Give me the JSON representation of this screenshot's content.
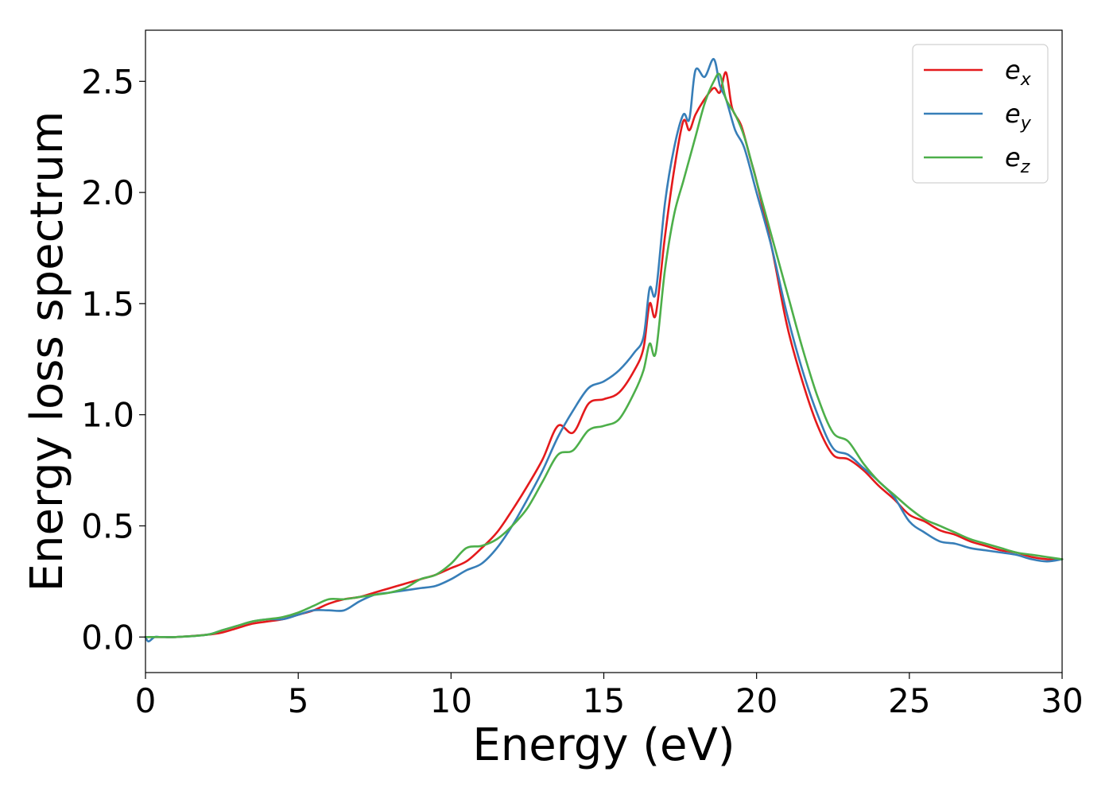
{
  "chart_data": {
    "type": "line",
    "title": "",
    "xlabel": "Energy (eV)",
    "ylabel": "Energy loss spectrum",
    "xlim": [
      0,
      30
    ],
    "ylim": [
      -0.16,
      2.73
    ],
    "xticks": [
      0,
      5,
      10,
      15,
      20,
      25,
      30
    ],
    "yticks": [
      0.0,
      0.5,
      1.0,
      1.5,
      2.0,
      2.5
    ],
    "xtick_labels": [
      "0",
      "5",
      "10",
      "15",
      "20",
      "25",
      "30"
    ],
    "ytick_labels": [
      "0.0",
      "0.5",
      "1.0",
      "1.5",
      "2.0",
      "2.5"
    ],
    "grid": false,
    "legend_position": "top-right",
    "series": [
      {
        "name": "e_x",
        "label_main": "e",
        "label_sub": "x",
        "color": "#e41a1c",
        "x": [
          0,
          0.5,
          1,
          2,
          2.5,
          3,
          3.5,
          4,
          4.5,
          5,
          5.5,
          6,
          6.5,
          7,
          7.5,
          8,
          8.5,
          9,
          9.5,
          10,
          10.5,
          11,
          11.5,
          12,
          12.5,
          13,
          13.5,
          14,
          14.5,
          15,
          15.5,
          16,
          16.3,
          16.5,
          16.7,
          17,
          17.3,
          17.6,
          17.8,
          18,
          18.3,
          18.6,
          18.8,
          19,
          19.2,
          19.5,
          19.8,
          20,
          20.5,
          21,
          21.5,
          22,
          22.5,
          23,
          23.5,
          24,
          24.5,
          25,
          25.5,
          26,
          26.5,
          27,
          27.5,
          28,
          28.5,
          29,
          29.5,
          30
        ],
        "values": [
          0.0,
          0.0,
          0.0,
          0.01,
          0.02,
          0.04,
          0.06,
          0.07,
          0.08,
          0.1,
          0.12,
          0.15,
          0.17,
          0.18,
          0.2,
          0.22,
          0.24,
          0.26,
          0.28,
          0.31,
          0.34,
          0.4,
          0.47,
          0.57,
          0.68,
          0.8,
          0.95,
          0.92,
          1.05,
          1.07,
          1.1,
          1.2,
          1.3,
          1.5,
          1.45,
          1.8,
          2.1,
          2.32,
          2.28,
          2.35,
          2.42,
          2.47,
          2.45,
          2.54,
          2.38,
          2.3,
          2.15,
          2.05,
          1.75,
          1.4,
          1.15,
          0.95,
          0.82,
          0.8,
          0.75,
          0.68,
          0.62,
          0.55,
          0.52,
          0.48,
          0.46,
          0.43,
          0.41,
          0.39,
          0.38,
          0.36,
          0.35,
          0.35
        ]
      },
      {
        "name": "e_y",
        "label_main": "e",
        "label_sub": "y",
        "color": "#377eb8",
        "x": [
          0,
          0.1,
          0.3,
          0.5,
          1,
          2,
          2.5,
          3,
          3.5,
          4,
          4.5,
          5,
          5.5,
          6,
          6.5,
          7,
          7.5,
          8,
          8.5,
          9,
          9.5,
          10,
          10.5,
          11,
          11.5,
          12,
          12.5,
          13,
          13.5,
          14,
          14.5,
          15,
          15.5,
          16,
          16.3,
          16.5,
          16.7,
          17,
          17.3,
          17.6,
          17.8,
          18,
          18.3,
          18.6,
          18.8,
          19,
          19.3,
          19.6,
          20,
          20.5,
          21,
          21.5,
          22,
          22.5,
          23,
          23.5,
          24,
          24.5,
          25,
          25.5,
          26,
          26.5,
          27,
          27.5,
          28,
          28.5,
          29,
          29.5,
          30
        ],
        "values": [
          0.0,
          -0.02,
          0.0,
          0.0,
          0.0,
          0.01,
          0.03,
          0.05,
          0.07,
          0.08,
          0.08,
          0.1,
          0.12,
          0.12,
          0.12,
          0.16,
          0.19,
          0.2,
          0.21,
          0.22,
          0.23,
          0.26,
          0.3,
          0.33,
          0.4,
          0.5,
          0.62,
          0.75,
          0.9,
          1.02,
          1.12,
          1.15,
          1.2,
          1.28,
          1.35,
          1.57,
          1.55,
          1.95,
          2.2,
          2.35,
          2.33,
          2.55,
          2.52,
          2.6,
          2.48,
          2.42,
          2.28,
          2.2,
          2.0,
          1.75,
          1.45,
          1.2,
          1.0,
          0.85,
          0.82,
          0.76,
          0.7,
          0.63,
          0.52,
          0.47,
          0.43,
          0.42,
          0.4,
          0.39,
          0.38,
          0.37,
          0.35,
          0.34,
          0.35
        ]
      },
      {
        "name": "e_z",
        "label_main": "e",
        "label_sub": "z",
        "color": "#4daf4a",
        "x": [
          0,
          0.5,
          1,
          2,
          2.5,
          3,
          3.5,
          4,
          4.5,
          5,
          5.5,
          6,
          6.5,
          7,
          7.5,
          8,
          8.5,
          9,
          9.5,
          10,
          10.5,
          11,
          11.5,
          12,
          12.5,
          13,
          13.5,
          14,
          14.5,
          15,
          15.5,
          16,
          16.3,
          16.5,
          16.7,
          17,
          17.3,
          17.6,
          17.8,
          18,
          18.3,
          18.6,
          18.8,
          19,
          19.3,
          19.6,
          20,
          20.5,
          21,
          21.5,
          22,
          22.5,
          23,
          23.5,
          24,
          24.5,
          25,
          25.5,
          26,
          26.5,
          27,
          27.5,
          28,
          28.5,
          29,
          29.5,
          30
        ],
        "values": [
          0.0,
          0.0,
          0.0,
          0.01,
          0.03,
          0.05,
          0.07,
          0.08,
          0.09,
          0.11,
          0.14,
          0.17,
          0.17,
          0.18,
          0.19,
          0.2,
          0.22,
          0.26,
          0.28,
          0.33,
          0.4,
          0.41,
          0.44,
          0.5,
          0.58,
          0.7,
          0.82,
          0.84,
          0.93,
          0.95,
          0.98,
          1.1,
          1.2,
          1.32,
          1.28,
          1.65,
          1.9,
          2.05,
          2.15,
          2.25,
          2.4,
          2.5,
          2.53,
          2.42,
          2.35,
          2.25,
          2.05,
          1.8,
          1.55,
          1.3,
          1.08,
          0.92,
          0.88,
          0.78,
          0.7,
          0.64,
          0.58,
          0.53,
          0.5,
          0.47,
          0.44,
          0.42,
          0.4,
          0.38,
          0.37,
          0.36,
          0.35
        ]
      }
    ]
  }
}
